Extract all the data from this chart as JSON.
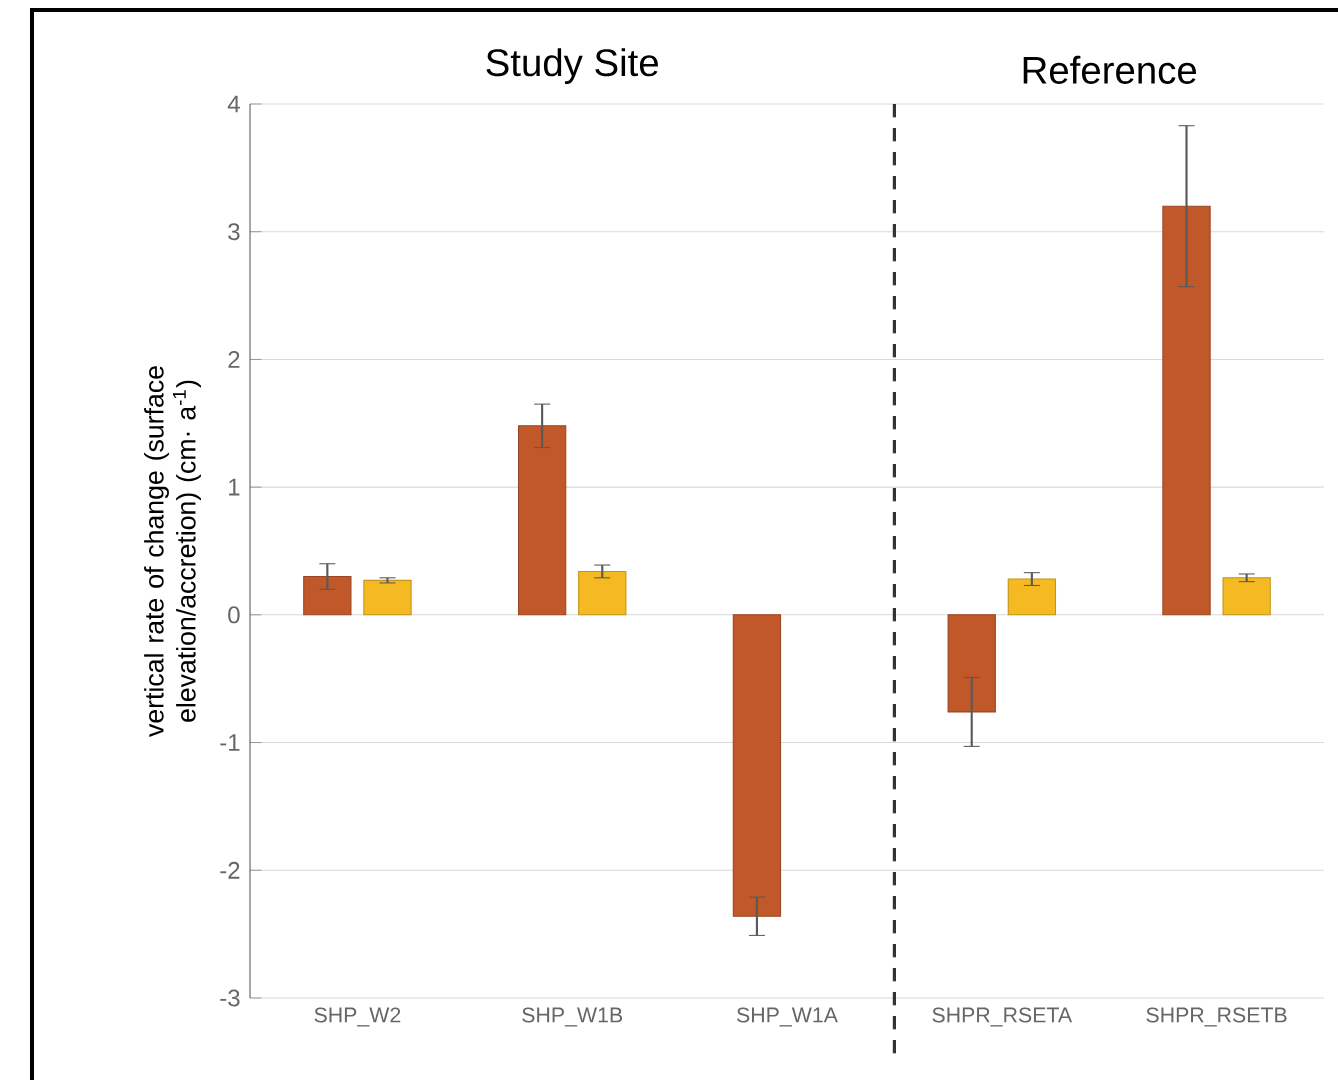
{
  "chart_data": {
    "type": "bar",
    "ylabel": "vertical rate of change  (surface elevation/accretion) (cm· a$^{-1}$)",
    "categories": [
      "SHP_W2",
      "SHP_W1B",
      "SHP_W1A",
      "SHPR_RSETA",
      "SHPR_RSETB"
    ],
    "series": [
      {
        "color": "#c0582a",
        "values": [
          0.3,
          1.48,
          -2.36,
          -0.76,
          3.2
        ],
        "errors": [
          0.1,
          0.17,
          0.15,
          0.27,
          0.63
        ]
      },
      {
        "color": "#f5b922",
        "values": [
          0.27,
          0.34,
          null,
          0.28,
          0.29
        ],
        "errors": [
          0.02,
          0.05,
          null,
          0.05,
          0.03
        ]
      }
    ],
    "ylim": [
      -3,
      4
    ],
    "yticks": [
      -3,
      -2,
      -1,
      0,
      1,
      2,
      3,
      4
    ],
    "grid": "y",
    "annotations": [
      "Study Site",
      "Reference"
    ]
  }
}
